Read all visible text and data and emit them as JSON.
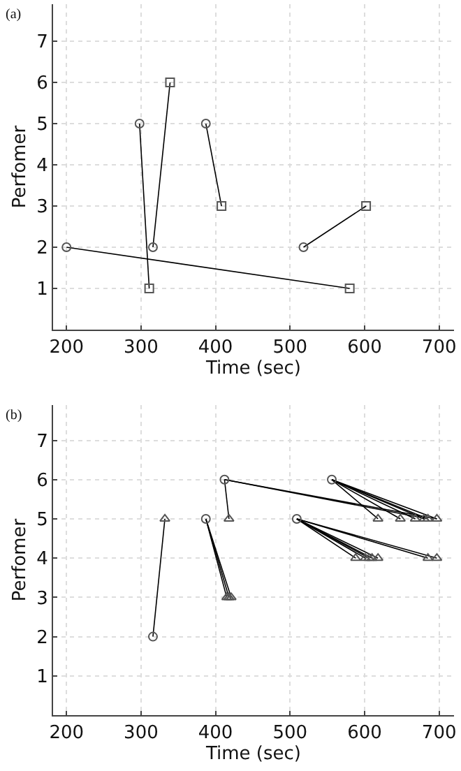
{
  "chart_data": [
    {
      "type": "line",
      "annotations": [
        "(a)"
      ],
      "xlabel": "Time (sec)",
      "ylabel": "Perfomer",
      "xlim": [
        182,
        720
      ],
      "ylim": [
        0,
        7.9
      ],
      "xticks": [
        200,
        300,
        400,
        500,
        600,
        700
      ],
      "yticks": [
        1,
        2,
        3,
        4,
        5,
        6,
        7
      ],
      "grid": true,
      "line_style": "solid",
      "series": [
        {
          "color": "#000000",
          "marker": "none",
          "x": [
            200,
            580
          ],
          "values": [
            2,
            1
          ]
        },
        {
          "color": "#000000",
          "marker": "none",
          "x": [
            298,
            311
          ],
          "values": [
            5,
            1
          ]
        },
        {
          "color": "#000000",
          "marker": "none",
          "x": [
            316,
            339
          ],
          "values": [
            2,
            6
          ]
        },
        {
          "color": "#000000",
          "marker": "none",
          "x": [
            387,
            408
          ],
          "values": [
            5,
            3
          ]
        },
        {
          "color": "#000000",
          "marker": "none",
          "x": [
            518,
            602
          ],
          "values": [
            2,
            3
          ]
        },
        {
          "type": "scatter",
          "color": "#555555",
          "marker": "circle",
          "x": [
            200,
            298,
            316,
            387,
            518
          ],
          "values": [
            2,
            5,
            2,
            5,
            2
          ]
        },
        {
          "type": "scatter",
          "color": "#555555",
          "marker": "square",
          "x": [
            580,
            311,
            339,
            408,
            602
          ],
          "values": [
            1,
            1,
            6,
            3,
            3
          ]
        }
      ]
    },
    {
      "type": "line",
      "annotations": [
        "(b)"
      ],
      "xlabel": "Time (sec)",
      "ylabel": "Perfomer",
      "xlim": [
        182,
        720
      ],
      "ylim": [
        0,
        7.9
      ],
      "xticks": [
        200,
        300,
        400,
        500,
        600,
        700
      ],
      "yticks": [
        1,
        2,
        3,
        4,
        5,
        6,
        7
      ],
      "grid": true,
      "line_style": "solid",
      "series": [
        {
          "color": "#000000",
          "marker": "none",
          "x": [
            316,
            332
          ],
          "values": [
            2,
            5
          ]
        },
        {
          "color": "#000000",
          "marker": "none",
          "x": [
            387,
            415
          ],
          "values": [
            5,
            3
          ]
        },
        {
          "color": "#000000",
          "marker": "none",
          "x": [
            387,
            418
          ],
          "values": [
            5,
            3
          ]
        },
        {
          "color": "#000000",
          "marker": "none",
          "x": [
            387,
            421
          ],
          "values": [
            5,
            3
          ]
        },
        {
          "color": "#000000",
          "marker": "none",
          "x": [
            412,
            418
          ],
          "values": [
            6,
            5
          ]
        },
        {
          "color": "#000000",
          "marker": "none",
          "x": [
            412,
            685
          ],
          "values": [
            6,
            5
          ]
        },
        {
          "color": "#000000",
          "marker": "none",
          "x": [
            412,
            697
          ],
          "values": [
            6,
            5
          ]
        },
        {
          "color": "#000000",
          "marker": "none",
          "x": [
            556,
            618
          ],
          "values": [
            6,
            5
          ]
        },
        {
          "color": "#000000",
          "marker": "none",
          "x": [
            556,
            648
          ],
          "values": [
            6,
            5
          ]
        },
        {
          "color": "#000000",
          "marker": "none",
          "x": [
            556,
            668
          ],
          "values": [
            6,
            5
          ]
        },
        {
          "color": "#000000",
          "marker": "none",
          "x": [
            556,
            680
          ],
          "values": [
            6,
            5
          ]
        },
        {
          "color": "#000000",
          "marker": "none",
          "x": [
            556,
            685
          ],
          "values": [
            6,
            5
          ]
        },
        {
          "color": "#000000",
          "marker": "none",
          "x": [
            556,
            697
          ],
          "values": [
            6,
            5
          ]
        },
        {
          "color": "#000000",
          "marker": "none",
          "x": [
            509,
            588
          ],
          "values": [
            5,
            4
          ]
        },
        {
          "color": "#000000",
          "marker": "none",
          "x": [
            509,
            601
          ],
          "values": [
            5,
            4
          ]
        },
        {
          "color": "#000000",
          "marker": "none",
          "x": [
            509,
            606
          ],
          "values": [
            5,
            4
          ]
        },
        {
          "color": "#000000",
          "marker": "none",
          "x": [
            509,
            610
          ],
          "values": [
            5,
            4
          ]
        },
        {
          "color": "#000000",
          "marker": "none",
          "x": [
            509,
            618
          ],
          "values": [
            5,
            4
          ]
        },
        {
          "color": "#000000",
          "marker": "none",
          "x": [
            509,
            685
          ],
          "values": [
            5,
            4
          ]
        },
        {
          "color": "#000000",
          "marker": "none",
          "x": [
            509,
            697
          ],
          "values": [
            5,
            4
          ]
        },
        {
          "type": "scatter",
          "color": "#555555",
          "marker": "circle",
          "x": [
            316,
            387,
            412,
            556,
            509
          ],
          "values": [
            2,
            5,
            6,
            6,
            5
          ]
        },
        {
          "type": "scatter",
          "color": "#555555",
          "marker": "triangle",
          "x": [
            332,
            415,
            418,
            421,
            418,
            618,
            648,
            668,
            680,
            685,
            697,
            588,
            601,
            606,
            610,
            618,
            685,
            697
          ],
          "values": [
            5,
            3,
            3,
            3,
            5,
            5,
            5,
            5,
            5,
            5,
            5,
            4,
            4,
            4,
            4,
            4,
            4,
            4
          ]
        }
      ]
    }
  ]
}
